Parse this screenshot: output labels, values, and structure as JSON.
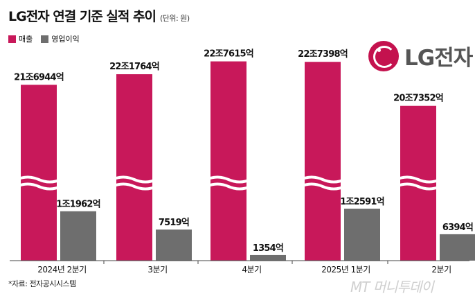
{
  "header": {
    "title": "LG전자 연결 기준 실적 추이",
    "unit": "(단위: 원)"
  },
  "logo": {
    "text": "LG전자"
  },
  "source": "*자료: 전자공시시스템",
  "watermark": "MT 머니투데이",
  "colors": {
    "revenue": "#c8185a",
    "operating_profit": "#6e6e6e"
  },
  "chart_data": {
    "type": "bar",
    "categories": [
      "2024년 2분기",
      "3분기",
      "4분기",
      "2025년 1분기",
      "2분기"
    ],
    "y_axis": "broken (values of 매출 bars compressed)",
    "series": [
      {
        "name": "매출",
        "values": [
          216944,
          221764,
          227615,
          227398,
          207352
        ],
        "labels": [
          "21조6944억",
          "22조1764억",
          "22조7615억",
          "22조7398억",
          "20조7352억"
        ]
      },
      {
        "name": "영업이익",
        "values": [
          11962,
          7519,
          1354,
          12591,
          6394
        ],
        "labels": [
          "1조1962억",
          "7519억",
          "1354억",
          "1조2591억",
          "6394억"
        ]
      }
    ]
  }
}
